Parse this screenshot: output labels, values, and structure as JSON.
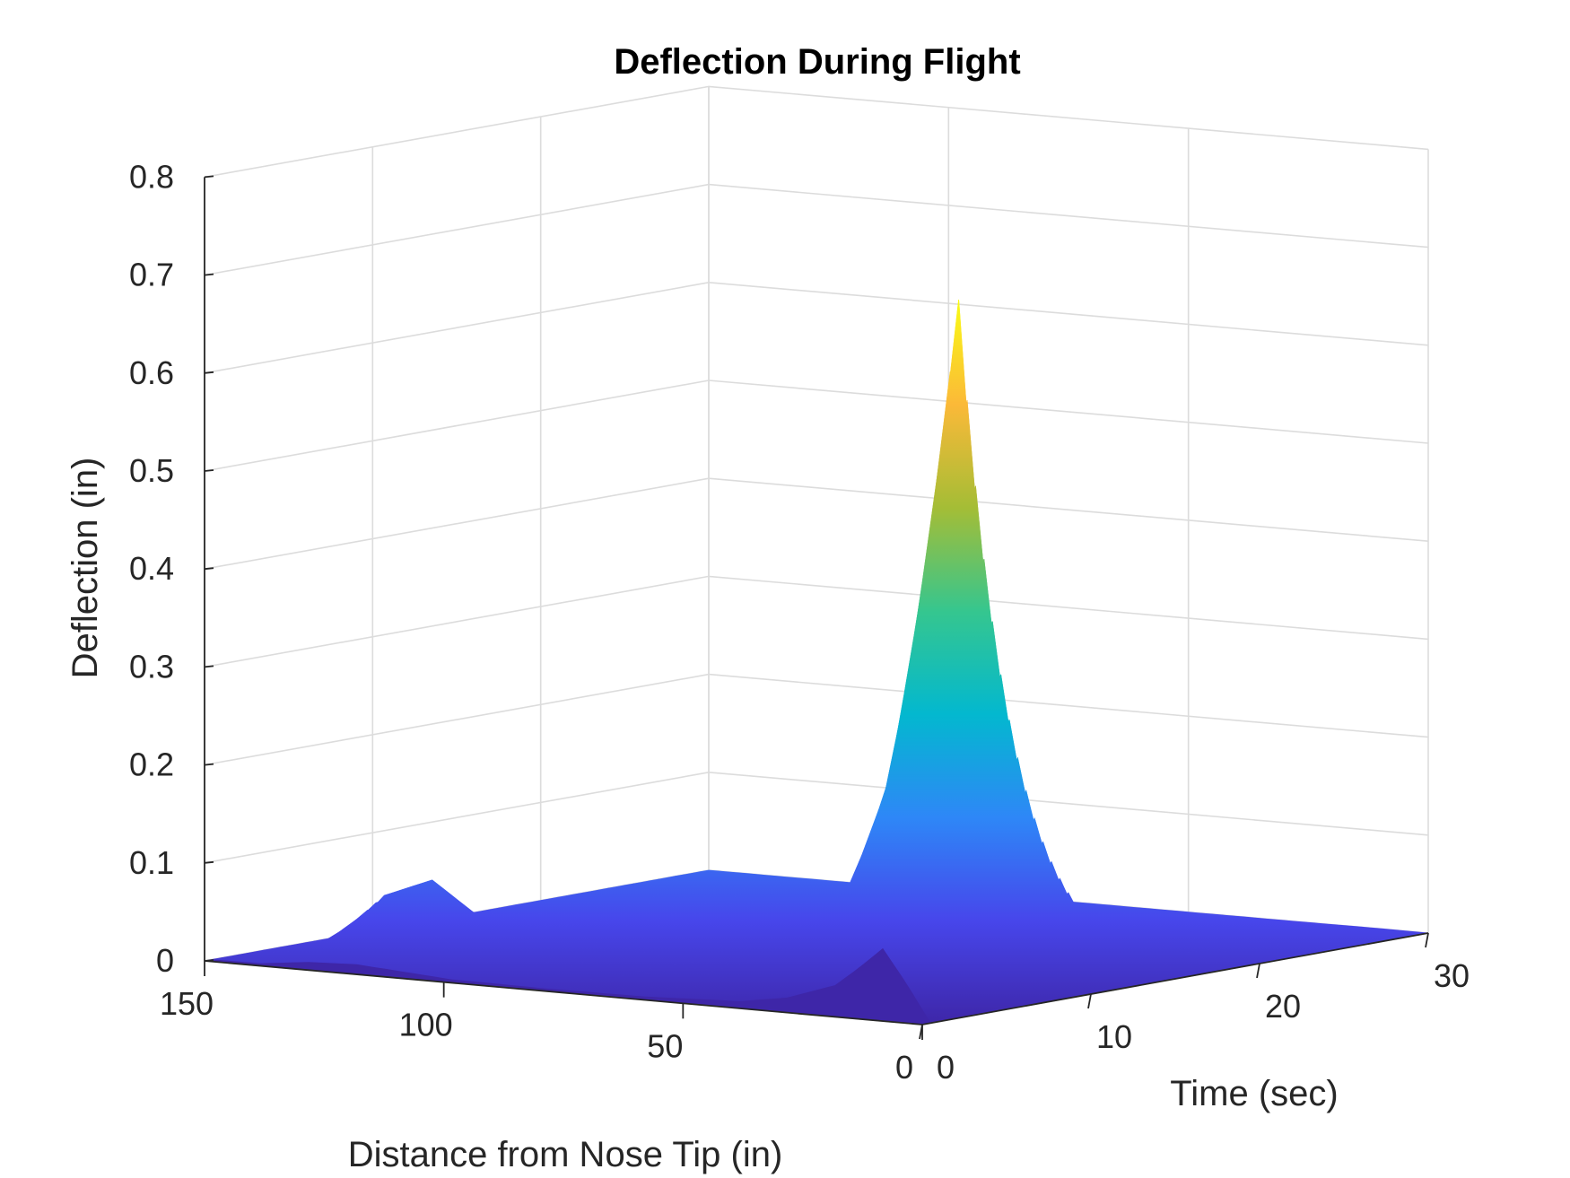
{
  "chart_data": {
    "type": "surface",
    "title": "Deflection During Flight",
    "xlabel": "Distance from Nose Tip (in)",
    "ylabel": "Time (sec)",
    "zlabel": "Deflection (in)",
    "x_ticks": [
      "150",
      "100",
      "50",
      "0"
    ],
    "y_ticks": [
      "0",
      "10",
      "20",
      "30"
    ],
    "z_ticks": [
      "0",
      "0.1",
      "0.2",
      "0.3",
      "0.4",
      "0.5",
      "0.6",
      "0.7",
      "0.8"
    ],
    "xlim": [
      0,
      150
    ],
    "ylim": [
      0,
      30
    ],
    "zlim": [
      0,
      0.8
    ],
    "grid": true,
    "colormap": "parula",
    "colors": [
      "#3e26a8",
      "#4746eb",
      "#2e87f7",
      "#03b8cf",
      "#35c68f",
      "#a4bd36",
      "#fbb938",
      "#f9fb15"
    ],
    "peak": {
      "distance": 10,
      "time": 5,
      "deflection": 0.72
    },
    "profile_samples": [
      {
        "distance": 0,
        "deflection": 0.0
      },
      {
        "distance": 5,
        "deflection": 0.38
      },
      {
        "distance": 10,
        "deflection": 0.72
      },
      {
        "distance": 15,
        "deflection": 0.5
      },
      {
        "distance": 20,
        "deflection": 0.3
      },
      {
        "distance": 30,
        "deflection": 0.13
      },
      {
        "distance": 40,
        "deflection": 0.05
      },
      {
        "distance": 60,
        "deflection": 0.012
      },
      {
        "distance": 80,
        "deflection": 0.004
      },
      {
        "distance": 100,
        "deflection": 0.012
      },
      {
        "distance": 120,
        "deflection": 0.08
      },
      {
        "distance": 130,
        "deflection": 0.06
      },
      {
        "distance": 140,
        "deflection": 0.003
      },
      {
        "distance": 150,
        "deflection": 0.0
      }
    ]
  }
}
